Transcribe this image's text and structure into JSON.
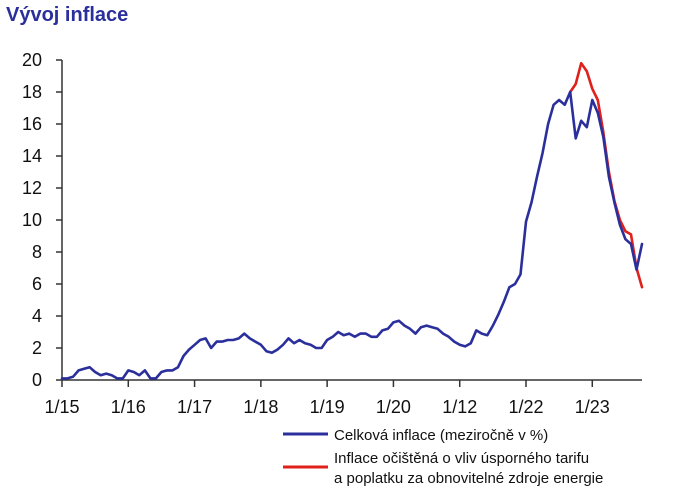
{
  "chart_data": {
    "type": "line",
    "title": "Vývoj inflace",
    "xlabel": "",
    "ylabel": "",
    "ylim": [
      0,
      20
    ],
    "y_ticks": [
      "0",
      "2",
      "4",
      "6",
      "8",
      "10",
      "12",
      "14",
      "16",
      "18",
      "20"
    ],
    "x_ticks": [
      "1/15",
      "1/16",
      "1/17",
      "1/18",
      "1/19",
      "1/20",
      "1/12",
      "1/22",
      "1/23"
    ],
    "x_ticks_index": [
      0,
      12,
      24,
      36,
      48,
      60,
      72,
      84,
      96
    ],
    "grid": false,
    "legend_position": "bottom-right",
    "colors": {
      "series1": "#2b2f9c",
      "series2": "#e0201b",
      "axis": "#333333",
      "title": "#2b2f9c"
    },
    "series": [
      {
        "name": "Celková inflace (meziročně v %)",
        "start_index": 0,
        "values": [
          0.1,
          0.1,
          0.2,
          0.6,
          0.7,
          0.8,
          0.5,
          0.3,
          0.4,
          0.3,
          0.1,
          0.1,
          0.6,
          0.5,
          0.3,
          0.6,
          0.1,
          0.1,
          0.5,
          0.6,
          0.6,
          0.8,
          1.5,
          1.9,
          2.2,
          2.5,
          2.6,
          2.0,
          2.4,
          2.4,
          2.5,
          2.5,
          2.6,
          2.9,
          2.6,
          2.4,
          2.2,
          1.8,
          1.7,
          1.9,
          2.2,
          2.6,
          2.3,
          2.5,
          2.3,
          2.2,
          2.0,
          2.0,
          2.5,
          2.7,
          3.0,
          2.8,
          2.9,
          2.7,
          2.9,
          2.9,
          2.7,
          2.7,
          3.1,
          3.2,
          3.6,
          3.7,
          3.4,
          3.2,
          2.9,
          3.3,
          3.4,
          3.3,
          3.2,
          2.9,
          2.7,
          2.4,
          2.2,
          2.1,
          2.3,
          3.1,
          2.9,
          2.8,
          3.4,
          4.1,
          4.9,
          5.8,
          6.0,
          6.6,
          9.9,
          11.1,
          12.7,
          14.2,
          16.0,
          17.2,
          17.5,
          17.2,
          18.0,
          15.1,
          16.2,
          15.8,
          17.5,
          16.7,
          15.2,
          12.7,
          11.1,
          9.7,
          8.8,
          8.5,
          6.9,
          8.5
        ]
      },
      {
        "name": "Inflace očištěná o vliv úsporného tarifu a poplatku za obnovitelné zdroje energie",
        "name_lines": [
          "Inflace očištěná o vliv úsporného tarifu",
          "a poplatku za obnovitelné zdroje energie"
        ],
        "start_index": 92,
        "values": [
          18.0,
          18.5,
          19.8,
          19.3,
          18.2,
          17.5,
          15.5,
          13.0,
          11.2,
          10.0,
          9.3,
          9.1,
          7.0,
          5.8
        ]
      }
    ]
  }
}
